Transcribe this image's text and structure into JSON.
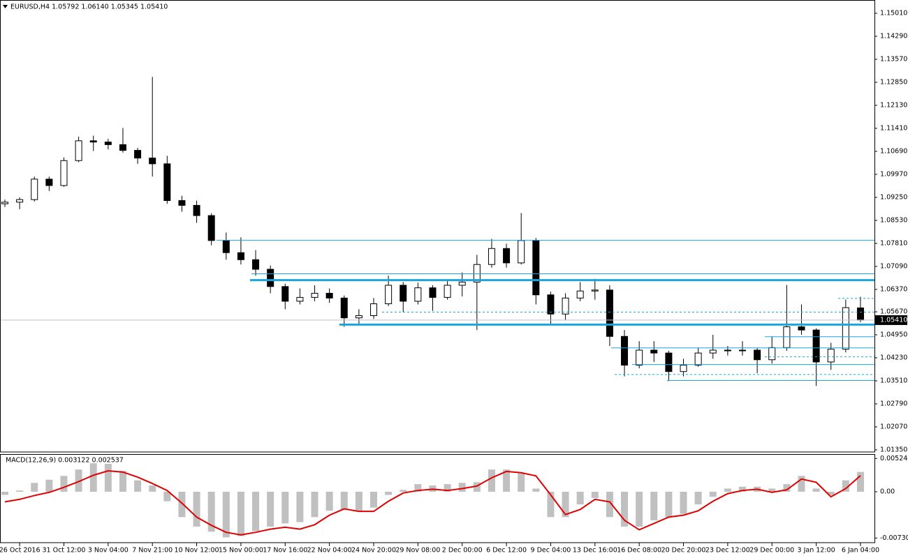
{
  "chart_data": [
    {
      "type": "candlestick",
      "title": "EURUSD,H4  1.05792 1.06140 1.05345 1.05410",
      "categories": [
        null,
        "26 Oct 2016",
        null,
        null,
        "31 Oct 12:00",
        null,
        null,
        "3 Nov 04:00",
        null,
        null,
        "7 Nov 21:00",
        null,
        null,
        "10 Nov 12:00",
        null,
        null,
        "15 Nov 00:00",
        null,
        null,
        "17 Nov 16:00",
        null,
        null,
        "22 Nov 04:00",
        null,
        null,
        "24 Nov 20:00",
        null,
        null,
        "29 Nov 08:00",
        null,
        null,
        "2 Dec 00:00",
        null,
        null,
        "6 Dec 12:00",
        null,
        null,
        "9 Dec 04:00",
        null,
        null,
        "13 Dec 16:00",
        null,
        null,
        "16 Dec 08:00",
        null,
        null,
        "20 Dec 20:00",
        null,
        null,
        "23 Dec 12:00",
        null,
        null,
        "29 Dec 00:00",
        null,
        null,
        "3 Jan 12:00",
        null,
        null,
        "6 Jan 04:00"
      ],
      "open": [
        1.0905,
        1.091,
        1.0918,
        1.0982,
        1.0962,
        1.104,
        1.1102,
        1.1098,
        1.109,
        1.1072,
        1.1048,
        1.103,
        1.0915,
        1.09,
        1.0868,
        1.079,
        1.0752,
        1.073,
        1.07,
        1.0646,
        1.06,
        1.0612,
        1.0625,
        1.061,
        1.0548,
        1.0555,
        1.0592,
        1.065,
        1.06,
        1.0642,
        1.0612,
        1.065,
        1.066,
        1.0715,
        1.0765,
        1.072,
        1.079,
        1.062,
        1.056,
        1.061,
        1.0632,
        1.0635,
        1.049,
        1.04,
        1.0447,
        1.0438,
        1.038,
        1.04,
        1.0438,
        1.0447,
        1.0445,
        1.0447,
        1.0417,
        1.0455,
        1.052,
        1.051,
        1.041,
        1.045,
        1.05792
      ],
      "high": [
        1.0918,
        1.0925,
        1.099,
        1.099,
        1.105,
        1.1115,
        1.1118,
        1.1108,
        1.1142,
        1.108,
        1.1302,
        1.1055,
        1.093,
        1.0915,
        1.0875,
        1.0815,
        1.08,
        1.076,
        1.0712,
        1.0655,
        1.064,
        1.065,
        1.064,
        1.0618,
        1.0575,
        1.061,
        1.068,
        1.066,
        1.0658,
        1.065,
        1.0665,
        1.069,
        1.0745,
        1.0795,
        1.078,
        1.0876,
        1.0798,
        1.063,
        1.0625,
        1.066,
        1.067,
        1.065,
        1.051,
        1.0475,
        1.0475,
        1.0445,
        1.042,
        1.0455,
        1.0495,
        1.046,
        1.0475,
        1.0455,
        1.049,
        1.0651,
        1.059,
        1.0515,
        1.047,
        1.0605,
        1.0614
      ],
      "low": [
        1.0895,
        1.0888,
        1.0912,
        1.0945,
        1.0958,
        1.1035,
        1.107,
        1.1075,
        1.1065,
        1.103,
        1.099,
        1.0905,
        1.088,
        1.0845,
        1.0775,
        1.073,
        1.0715,
        1.068,
        1.0625,
        1.0575,
        1.059,
        1.06,
        1.0595,
        1.052,
        1.053,
        1.0545,
        1.0585,
        1.0565,
        1.059,
        1.057,
        1.0605,
        1.0615,
        1.051,
        1.0705,
        1.0705,
        1.0715,
        1.059,
        1.053,
        1.054,
        1.06,
        1.0605,
        1.046,
        1.0365,
        1.039,
        1.041,
        1.035,
        1.0365,
        1.0395,
        1.042,
        1.043,
        1.043,
        1.0375,
        1.0405,
        1.0445,
        1.0495,
        1.0335,
        1.0385,
        1.044,
        1.05345
      ],
      "close": [
        1.091,
        1.0918,
        1.0982,
        1.0962,
        1.104,
        1.1102,
        1.1098,
        1.109,
        1.1072,
        1.1048,
        1.103,
        1.0915,
        1.09,
        1.0868,
        1.079,
        1.0752,
        1.073,
        1.07,
        1.0646,
        1.06,
        1.0612,
        1.0625,
        1.061,
        1.0548,
        1.0555,
        1.0592,
        1.065,
        1.06,
        1.0642,
        1.0612,
        1.065,
        1.066,
        1.0715,
        1.0765,
        1.072,
        1.079,
        1.062,
        1.056,
        1.061,
        1.0632,
        1.0635,
        1.049,
        1.04,
        1.0447,
        1.0438,
        1.038,
        1.04,
        1.0438,
        1.0447,
        1.0445,
        1.0447,
        1.0417,
        1.0455,
        1.052,
        1.051,
        1.041,
        1.045,
        1.058,
        1.0541
      ],
      "bull_color": "#ffffff",
      "bear_color": "#000000",
      "outline_color": "#000000",
      "ylim": [
        1.01284,
        1.15381
      ],
      "yticks": [
        {
          "value": 1.1501,
          "label": "1.15010"
        },
        {
          "value": 1.1429,
          "label": "1.14290"
        },
        {
          "value": 1.1357,
          "label": "1.13570"
        },
        {
          "value": 1.1285,
          "label": "1.12850"
        },
        {
          "value": 1.1213,
          "label": "1.12130"
        },
        {
          "value": 1.1141,
          "label": "1.11410"
        },
        {
          "value": 1.1069,
          "label": "1.10690"
        },
        {
          "value": 1.0997,
          "label": "1.09970"
        },
        {
          "value": 1.0925,
          "label": "1.09250"
        },
        {
          "value": 1.0853,
          "label": "1.08530"
        },
        {
          "value": 1.0781,
          "label": "1.07810"
        },
        {
          "value": 1.0709,
          "label": "1.07090"
        },
        {
          "value": 1.0637,
          "label": "1.06370"
        },
        {
          "value": 1.0567,
          "label": "1.05670"
        },
        {
          "value": 1.0495,
          "label": "1.04950"
        },
        {
          "value": 1.0423,
          "label": "1.04230"
        },
        {
          "value": 1.0351,
          "label": "1.03510"
        },
        {
          "value": 1.0279,
          "label": "1.02790"
        },
        {
          "value": 1.0207,
          "label": "1.02070"
        },
        {
          "value": 1.0135,
          "label": "1.01350"
        }
      ],
      "last_price": {
        "value": 1.0541,
        "label": "1.05410"
      },
      "last_price_color": "#c0c0c0",
      "level_color": "#17a6e0",
      "levels": [
        {
          "value": 1.0791,
          "style": "thin"
        },
        {
          "value": 1.0686,
          "style": "thin"
        },
        {
          "value": 1.0666,
          "style": "thick"
        },
        {
          "value": 1.0527,
          "style": "thick"
        },
        {
          "value": 1.0489,
          "style": "thin"
        },
        {
          "value": 1.0454,
          "style": "thin"
        },
        {
          "value": 1.0402,
          "style": "thin"
        },
        {
          "value": 1.0352,
          "style": "thin"
        },
        {
          "value": 1.0566,
          "style": "dashed"
        },
        {
          "value": 1.0426,
          "style": "dashed"
        },
        {
          "value": 1.0371,
          "style": "dashed"
        },
        {
          "value": 1.0609,
          "style": "dashed"
        }
      ]
    },
    {
      "type": "macd",
      "title": "MACD(12,26,9) 0.003122 0.002537",
      "histogram": {
        "color": "#c0c0c0",
        "values": [
          -0.0005,
          0.0002,
          0.0014,
          0.0019,
          0.0025,
          0.0035,
          0.0045,
          0.0044,
          0.0033,
          0.0018,
          0.001,
          -0.0015,
          -0.004,
          -0.0055,
          -0.0063,
          -0.0072,
          -0.007,
          -0.0062,
          -0.0055,
          -0.005,
          -0.0048,
          -0.004,
          -0.003,
          -0.0028,
          -0.003,
          -0.0025,
          -0.0005,
          0.0003,
          0.0012,
          0.001,
          0.0012,
          0.0014,
          0.0015,
          0.0035,
          0.0035,
          0.003,
          0.0005,
          -0.004,
          -0.004,
          -0.002,
          -0.001,
          -0.004,
          -0.0055,
          -0.0055,
          -0.0045,
          -0.004,
          -0.0035,
          -0.002,
          -0.0008,
          0.0005,
          0.0008,
          0.0008,
          0.0005,
          0.0012,
          0.0025,
          0.0005,
          -0.0005,
          0.0018,
          0.003122
        ]
      },
      "signal": {
        "color": "#e00000",
        "values": [
          -0.0016,
          -0.0012,
          -0.0006,
          -0.0001,
          0.0007,
          0.0016,
          0.0026,
          0.0033,
          0.0031,
          0.0023,
          0.0013,
          0.0002,
          -0.0018,
          -0.004,
          -0.0053,
          -0.0064,
          -0.0068,
          -0.0064,
          -0.0059,
          -0.0056,
          -0.0059,
          -0.0052,
          -0.0037,
          -0.0027,
          -0.0031,
          -0.0031,
          -0.0015,
          -0.0002,
          0.0002,
          0.0004,
          0.0002,
          0.0005,
          0.0009,
          0.0022,
          0.0032,
          0.003,
          0.0025,
          -0.0005,
          -0.0036,
          -0.0028,
          -0.0012,
          -0.0016,
          -0.0045,
          -0.006,
          -0.005,
          -0.004,
          -0.0037,
          -0.003,
          -0.0015,
          -0.0003,
          0.0002,
          0.0004,
          -0.0001,
          0.0003,
          0.002,
          0.0015,
          -0.0008,
          0.0005,
          0.002537
        ]
      },
      "ylim": [
        -0.00803,
        0.00583
      ],
      "yticks": [
        0.005244,
        {
          "value": 0,
          "label": "0.00"
        },
        -0.007303
      ]
    }
  ]
}
